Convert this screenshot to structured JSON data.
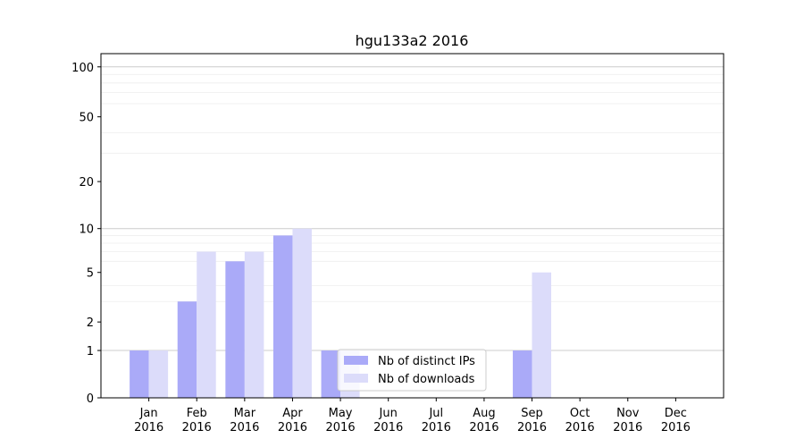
{
  "chart_data": {
    "type": "bar",
    "title": "hgu133a2 2016",
    "xlabel": "",
    "ylabel": "",
    "y_scale": "symlog",
    "ylim": [
      0,
      120
    ],
    "y_ticks": [
      0,
      1,
      2,
      5,
      10,
      20,
      50,
      100
    ],
    "categories": [
      [
        "Jan",
        "2016"
      ],
      [
        "Feb",
        "2016"
      ],
      [
        "Mar",
        "2016"
      ],
      [
        "Apr",
        "2016"
      ],
      [
        "May",
        "2016"
      ],
      [
        "Jun",
        "2016"
      ],
      [
        "Jul",
        "2016"
      ],
      [
        "Aug",
        "2016"
      ],
      [
        "Sep",
        "2016"
      ],
      [
        "Oct",
        "2016"
      ],
      [
        "Nov",
        "2016"
      ],
      [
        "Dec",
        "2016"
      ]
    ],
    "series": [
      {
        "name": "Nb of distinct IPs",
        "color": "#aaaaf8",
        "values": [
          1,
          3,
          6,
          9,
          1,
          0,
          0,
          0,
          1,
          0,
          0,
          0
        ]
      },
      {
        "name": "Nb of downloads",
        "color": "#dcdcfa",
        "values": [
          1,
          7,
          7,
          10,
          1,
          0,
          0,
          0,
          5,
          0,
          0,
          0
        ]
      }
    ],
    "grid": true,
    "legend_position": "lower-center"
  }
}
